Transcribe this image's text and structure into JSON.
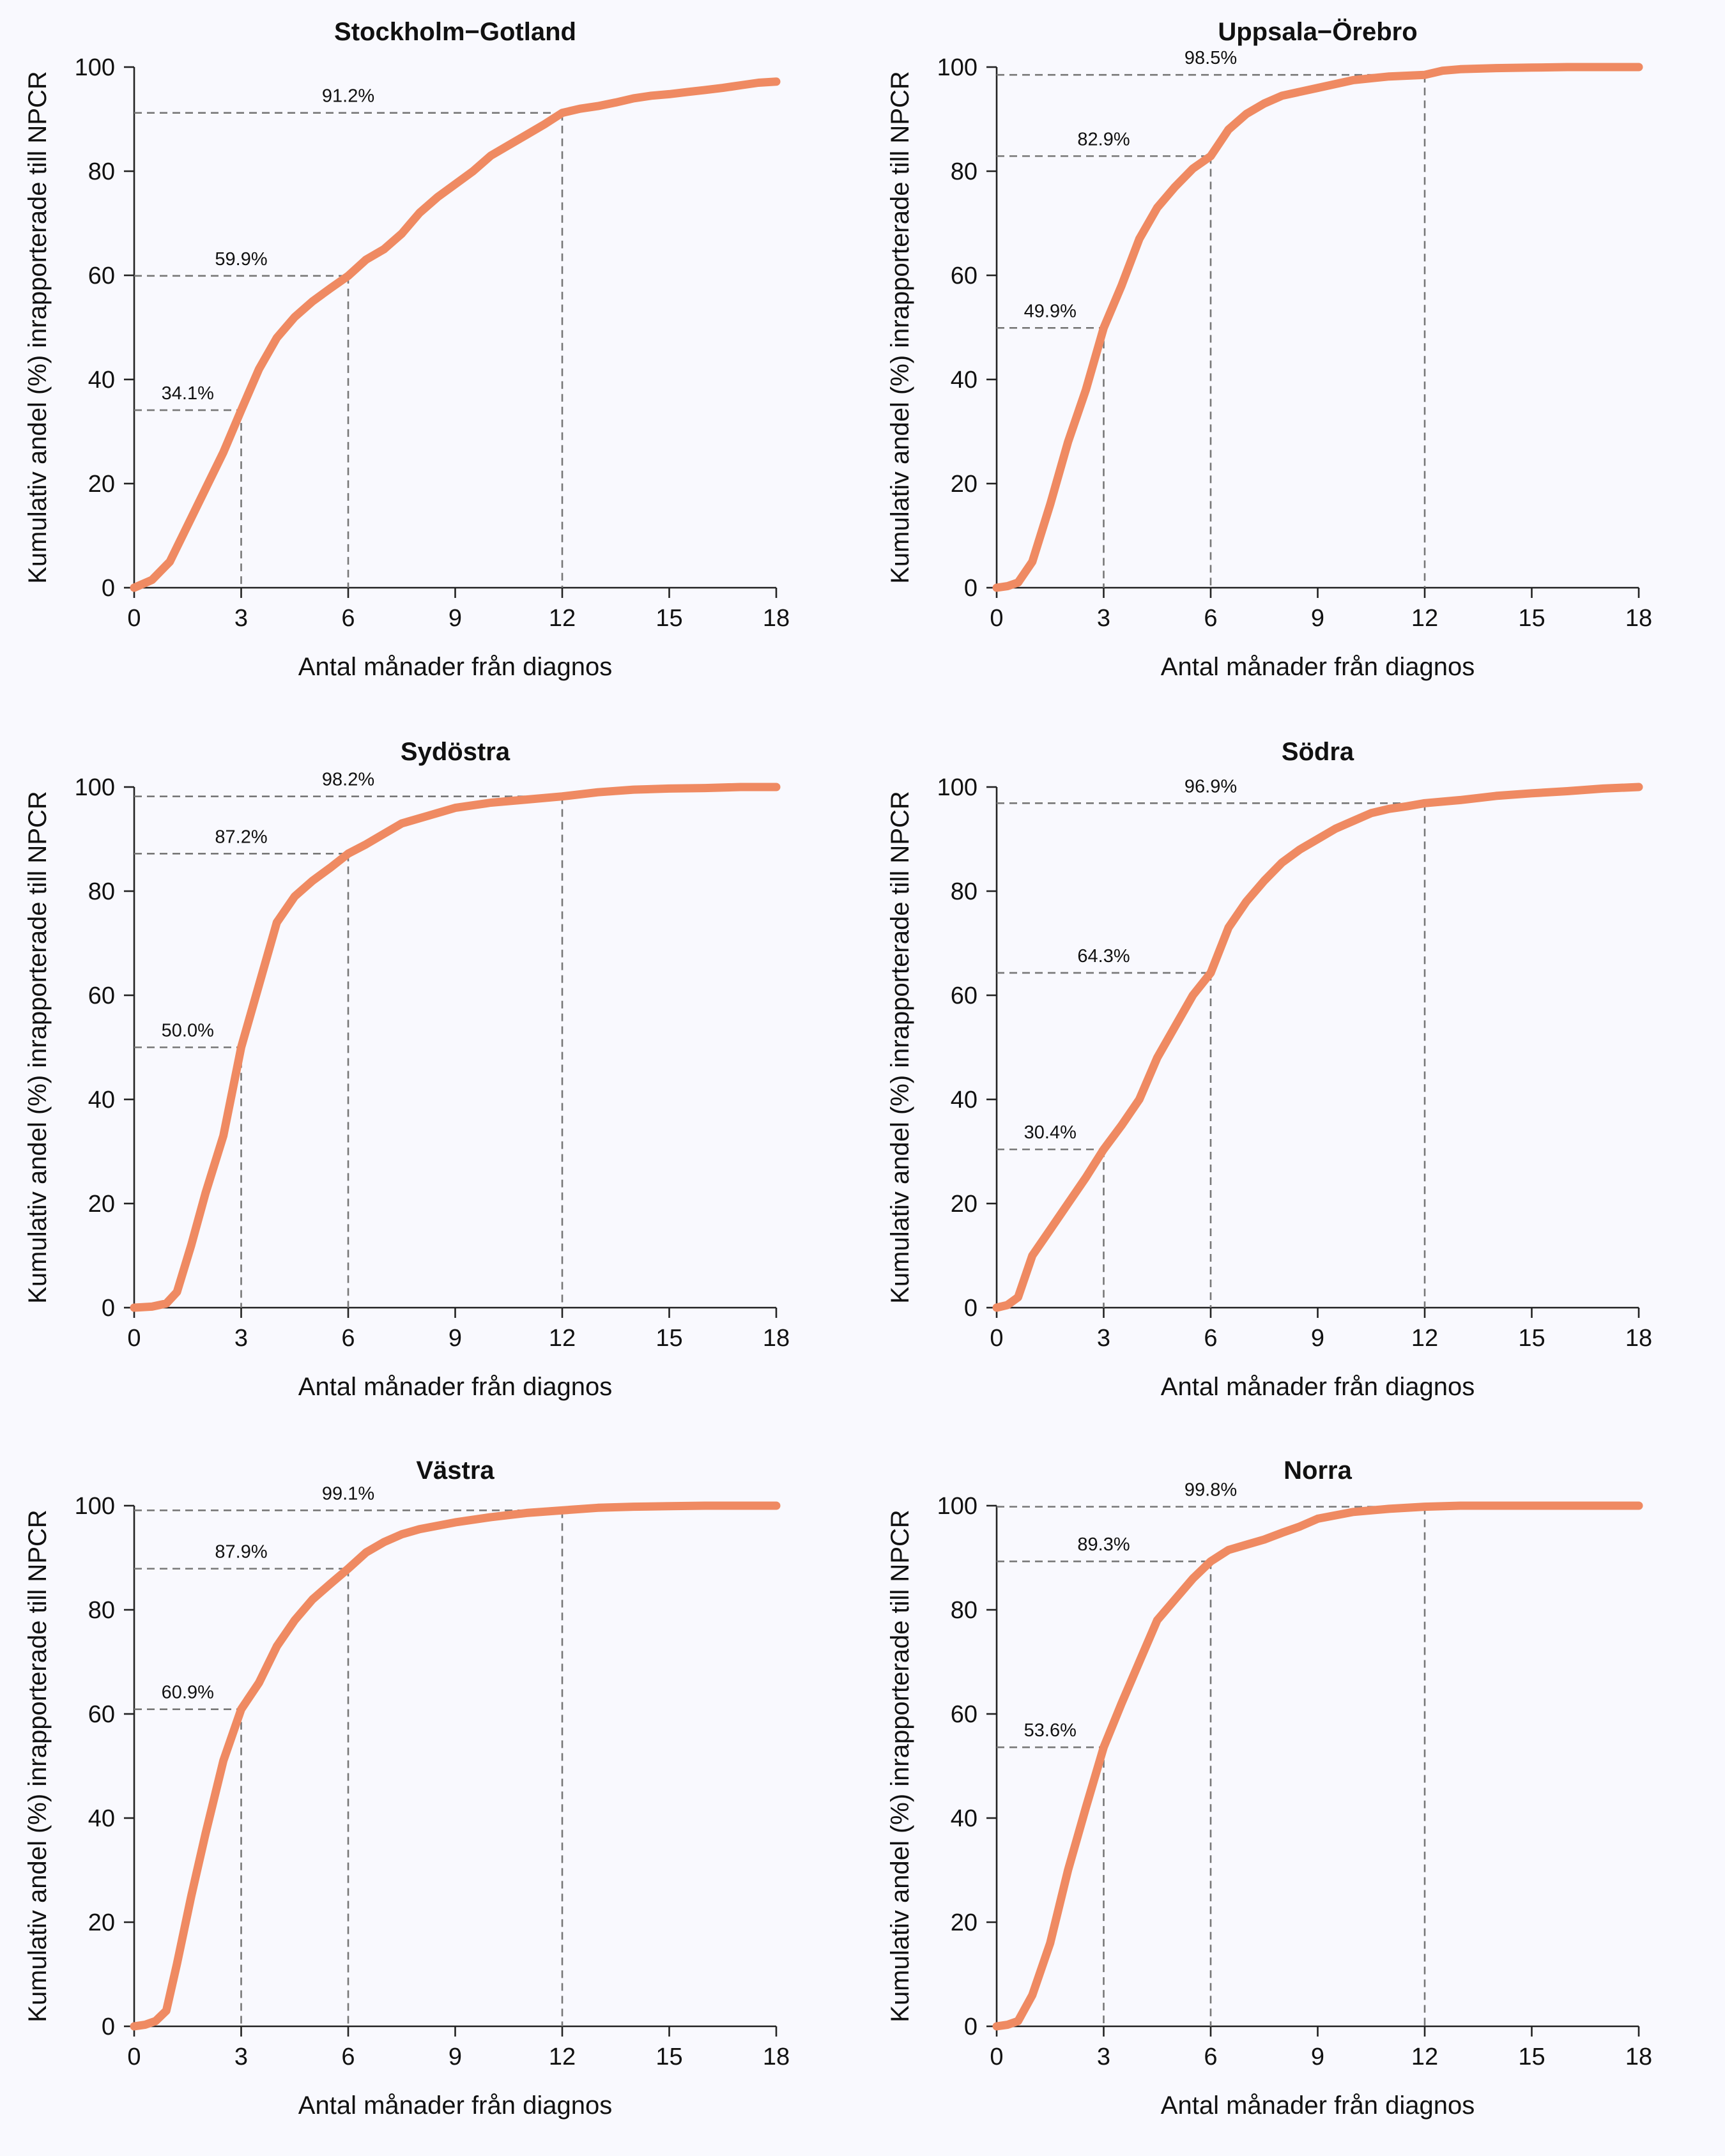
{
  "style": {
    "line_color": "#ef8a62",
    "ref_color": "#777777",
    "background": "#f9f9fe"
  },
  "chart_data": [
    {
      "type": "line",
      "title": "Stockholm−Gotland",
      "xlabel": "Antal månader från diagnos",
      "ylabel": "Kumulativ andel (%) inrapporterade till NPCR",
      "xlim": [
        0,
        18
      ],
      "ylim": [
        0,
        100
      ],
      "xticks": [
        0,
        3,
        6,
        9,
        12,
        15,
        18
      ],
      "yticks": [
        0,
        20,
        40,
        60,
        80,
        100
      ],
      "x": [
        0,
        0.5,
        1,
        1.5,
        2,
        2.5,
        3,
        3.5,
        4,
        4.5,
        5,
        5.5,
        6,
        6.5,
        7,
        7.5,
        8,
        8.5,
        9,
        9.5,
        10,
        10.5,
        11,
        11.5,
        12,
        12.5,
        13,
        13.5,
        14,
        14.5,
        15,
        15.5,
        16,
        16.5,
        17,
        17.5,
        18
      ],
      "y": [
        0,
        1.5,
        5,
        12,
        19,
        26,
        34.1,
        42,
        48,
        52,
        55,
        57.5,
        59.9,
        63,
        65,
        68,
        72,
        75,
        77.5,
        80,
        83,
        85,
        87,
        89,
        91.2,
        92,
        92.5,
        93.2,
        94,
        94.5,
        94.8,
        95.2,
        95.6,
        96,
        96.5,
        97,
        97.2
      ],
      "markers": [
        {
          "x": 3,
          "y": 34.1,
          "label": "34.1%"
        },
        {
          "x": 6,
          "y": 59.9,
          "label": "59.9%"
        },
        {
          "x": 12,
          "y": 91.2,
          "label": "91.2%"
        }
      ]
    },
    {
      "type": "line",
      "title": "Uppsala−Örebro",
      "xlabel": "Antal månader från diagnos",
      "ylabel": "Kumulativ andel (%) inrapporterade till NPCR",
      "xlim": [
        0,
        18
      ],
      "ylim": [
        0,
        100
      ],
      "xticks": [
        0,
        3,
        6,
        9,
        12,
        15,
        18
      ],
      "yticks": [
        0,
        20,
        40,
        60,
        80,
        100
      ],
      "x": [
        0,
        0.3,
        0.6,
        1,
        1.5,
        2,
        2.5,
        3,
        3.5,
        4,
        4.5,
        5,
        5.5,
        6,
        6.5,
        7,
        7.5,
        8,
        9,
        10,
        11,
        12,
        12.5,
        13,
        14,
        15,
        16,
        17,
        18
      ],
      "y": [
        0,
        0.3,
        1,
        5,
        16,
        28,
        38,
        49.9,
        58,
        67,
        73,
        77,
        80.5,
        82.9,
        88,
        91,
        93,
        94.5,
        96,
        97.5,
        98.2,
        98.5,
        99.3,
        99.6,
        99.8,
        99.9,
        100,
        100,
        100
      ],
      "markers": [
        {
          "x": 3,
          "y": 49.9,
          "label": "49.9%"
        },
        {
          "x": 6,
          "y": 82.9,
          "label": "82.9%"
        },
        {
          "x": 12,
          "y": 98.5,
          "label": "98.5%"
        }
      ]
    },
    {
      "type": "line",
      "title": "Sydöstra",
      "xlabel": "Antal månader från diagnos",
      "ylabel": "Kumulativ andel (%) inrapporterade till NPCR",
      "xlim": [
        0,
        18
      ],
      "ylim": [
        0,
        100
      ],
      "xticks": [
        0,
        3,
        6,
        9,
        12,
        15,
        18
      ],
      "yticks": [
        0,
        20,
        40,
        60,
        80,
        100
      ],
      "x": [
        0,
        0.5,
        0.9,
        1.2,
        1.6,
        2,
        2.5,
        3,
        3.5,
        4,
        4.5,
        5,
        5.5,
        6,
        6.5,
        7,
        7.5,
        8,
        8.5,
        9,
        10,
        11,
        12,
        13,
        14,
        15,
        16,
        17,
        18
      ],
      "y": [
        0,
        0.2,
        0.8,
        3,
        12,
        22,
        33,
        50,
        62,
        74,
        79,
        82,
        84.5,
        87.2,
        89,
        91,
        93,
        94,
        95,
        96,
        97,
        97.6,
        98.2,
        99,
        99.5,
        99.7,
        99.8,
        100,
        100
      ],
      "markers": [
        {
          "x": 3,
          "y": 50.0,
          "label": "50.0%"
        },
        {
          "x": 6,
          "y": 87.2,
          "label": "87.2%"
        },
        {
          "x": 12,
          "y": 98.2,
          "label": "98.2%"
        }
      ]
    },
    {
      "type": "line",
      "title": "Södra",
      "xlabel": "Antal månader från diagnos",
      "ylabel": "Kumulativ andel (%) inrapporterade till NPCR",
      "xlim": [
        0,
        18
      ],
      "ylim": [
        0,
        100
      ],
      "xticks": [
        0,
        3,
        6,
        9,
        12,
        15,
        18
      ],
      "yticks": [
        0,
        20,
        40,
        60,
        80,
        100
      ],
      "x": [
        0,
        0.3,
        0.6,
        1,
        1.5,
        2,
        2.5,
        3,
        3.5,
        4,
        4.5,
        5,
        5.5,
        6,
        6.5,
        7,
        7.5,
        8,
        8.5,
        9,
        9.5,
        10,
        10.5,
        11,
        11.5,
        12,
        13,
        14,
        15,
        16,
        17,
        18
      ],
      "y": [
        0,
        0.5,
        2,
        10,
        15,
        20,
        25,
        30.4,
        35,
        40,
        48,
        54,
        60,
        64.3,
        73,
        78,
        82,
        85.5,
        88,
        90,
        92,
        93.5,
        95,
        95.8,
        96.3,
        96.9,
        97.5,
        98.3,
        98.8,
        99.2,
        99.7,
        100
      ],
      "markers": [
        {
          "x": 3,
          "y": 30.4,
          "label": "30.4%"
        },
        {
          "x": 6,
          "y": 64.3,
          "label": "64.3%"
        },
        {
          "x": 12,
          "y": 96.9,
          "label": "96.9%"
        }
      ]
    },
    {
      "type": "line",
      "title": "Västra",
      "xlabel": "Antal månader från diagnos",
      "ylabel": "Kumulativ andel (%) inrapporterade till NPCR",
      "xlim": [
        0,
        18
      ],
      "ylim": [
        0,
        100
      ],
      "xticks": [
        0,
        3,
        6,
        9,
        12,
        15,
        18
      ],
      "yticks": [
        0,
        20,
        40,
        60,
        80,
        100
      ],
      "x": [
        0,
        0.3,
        0.6,
        0.9,
        1.2,
        1.6,
        2,
        2.5,
        3,
        3.5,
        4,
        4.5,
        5,
        5.5,
        6,
        6.5,
        7,
        7.5,
        8,
        9,
        10,
        11,
        12,
        13,
        14,
        15,
        16,
        17,
        18
      ],
      "y": [
        0,
        0.3,
        1,
        3,
        12,
        25,
        37,
        51,
        60.9,
        66,
        73,
        78,
        82,
        85,
        87.9,
        91,
        93,
        94.5,
        95.5,
        96.8,
        97.8,
        98.6,
        99.1,
        99.6,
        99.8,
        99.9,
        100,
        100,
        100
      ],
      "markers": [
        {
          "x": 3,
          "y": 60.9,
          "label": "60.9%"
        },
        {
          "x": 6,
          "y": 87.9,
          "label": "87.9%"
        },
        {
          "x": 12,
          "y": 99.1,
          "label": "99.1%"
        }
      ]
    },
    {
      "type": "line",
      "title": "Norra",
      "xlabel": "Antal månader från diagnos",
      "ylabel": "Kumulativ andel (%) inrapporterade till NPCR",
      "xlim": [
        0,
        18
      ],
      "ylim": [
        0,
        100
      ],
      "xticks": [
        0,
        3,
        6,
        9,
        12,
        15,
        18
      ],
      "yticks": [
        0,
        20,
        40,
        60,
        80,
        100
      ],
      "x": [
        0,
        0.3,
        0.6,
        1,
        1.5,
        2,
        2.5,
        3,
        3.5,
        4,
        4.5,
        5,
        5.5,
        6,
        6.5,
        7,
        7.5,
        8,
        8.5,
        9,
        10,
        11,
        12,
        13,
        14,
        15,
        16,
        17,
        18
      ],
      "y": [
        0,
        0.3,
        1,
        6,
        16,
        30,
        42,
        53.6,
        62,
        70,
        78,
        82,
        86,
        89.3,
        91.5,
        92.5,
        93.5,
        94.8,
        96,
        97.5,
        98.8,
        99.4,
        99.8,
        100,
        100,
        100,
        100,
        100,
        100
      ],
      "markers": [
        {
          "x": 3,
          "y": 53.6,
          "label": "53.6%"
        },
        {
          "x": 6,
          "y": 89.3,
          "label": "89.3%"
        },
        {
          "x": 12,
          "y": 99.8,
          "label": "99.8%"
        }
      ]
    }
  ]
}
